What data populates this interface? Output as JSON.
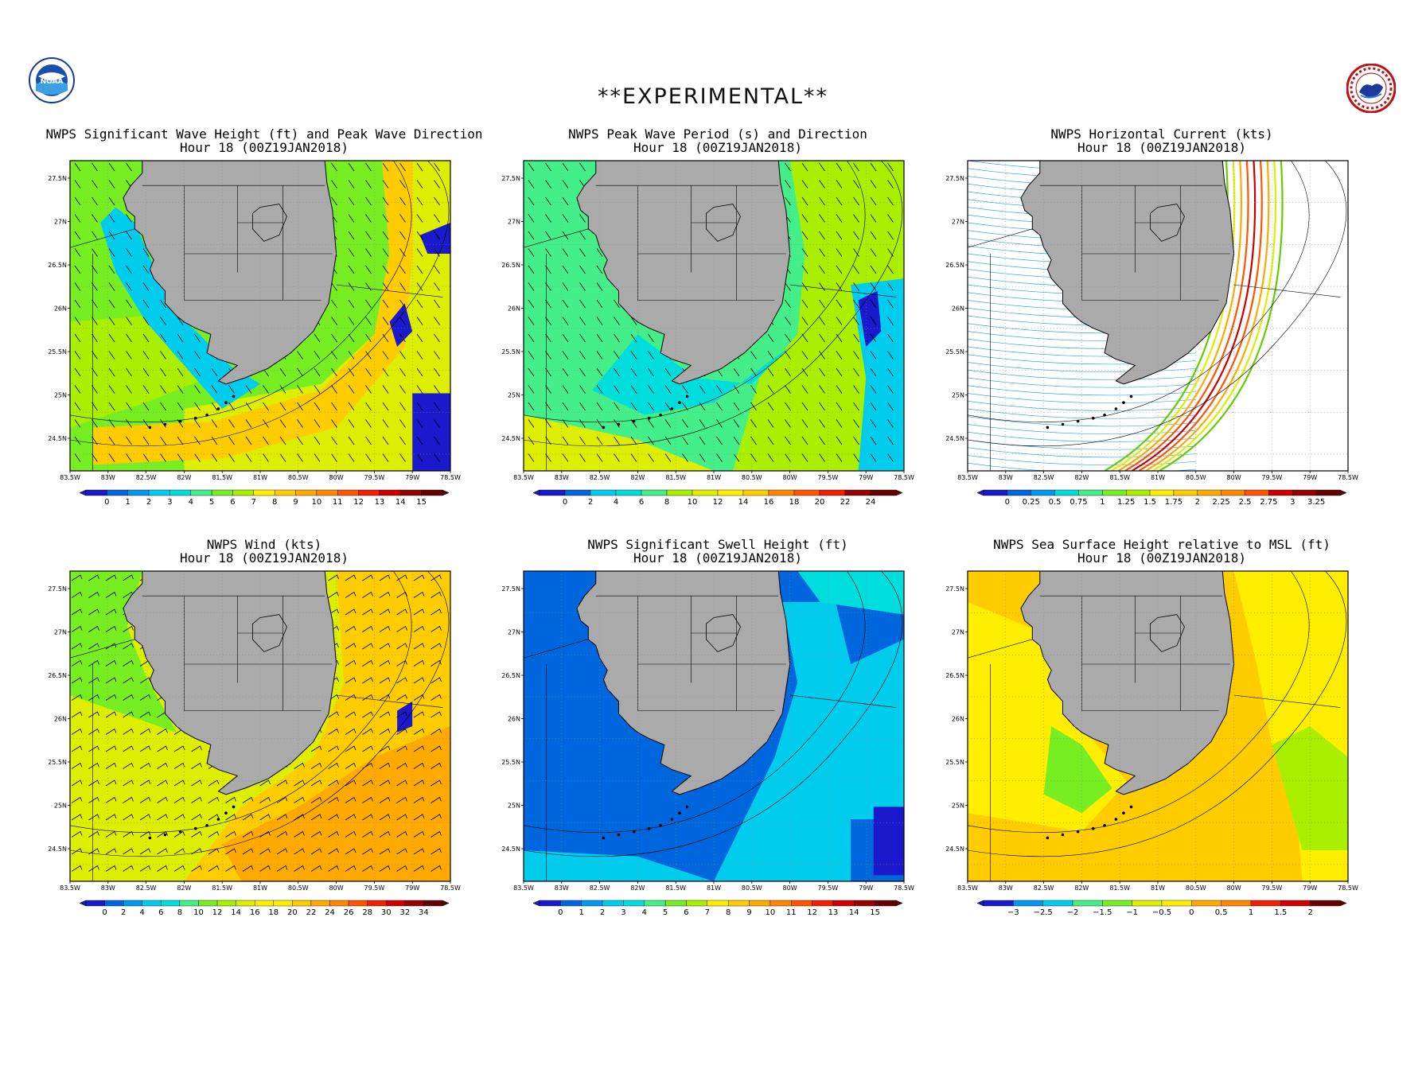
{
  "header": {
    "title": "**EXPERIMENTAL**",
    "left_logo_icon": "noaa-logo-icon",
    "left_logo_text": "NOAA",
    "right_logo_icon": "nws-logo-icon",
    "right_logo_text": "NATIONAL WEATHER SERVICE"
  },
  "axes": {
    "lat_labels": [
      "27.5N",
      "27N",
      "26.5N",
      "26N",
      "25.5N",
      "25N",
      "24.5N"
    ],
    "lon_labels": [
      "83.5W",
      "83W",
      "82.5W",
      "82W",
      "81.5W",
      "81W",
      "80.5W",
      "80W",
      "79.5W",
      "79W",
      "78.5W"
    ]
  },
  "panels": [
    {
      "id": "wave-height",
      "title_line1": "NWPS Significant Wave Height (ft) and Peak Wave Direction",
      "title_line2": "Hour 18 (00Z19JAN2018)",
      "field_style": "wave",
      "overlay": "arrows",
      "colorbar": [
        "0",
        "1",
        "2",
        "3",
        "4",
        "5",
        "6",
        "7",
        "8",
        "9",
        "10",
        "11",
        "12",
        "13",
        "14",
        "15"
      ]
    },
    {
      "id": "wave-period",
      "title_line1": "NWPS Peak Wave Period (s) and Direction",
      "title_line2": "Hour 18 (00Z19JAN2018)",
      "field_style": "period",
      "overlay": "arrows",
      "colorbar": [
        "0",
        "2",
        "4",
        "6",
        "8",
        "10",
        "12",
        "14",
        "16",
        "18",
        "20",
        "22",
        "24"
      ]
    },
    {
      "id": "current",
      "title_line1": "NWPS Horizontal Current (kts)",
      "title_line2": "Hour 18 (00Z19JAN2018)",
      "field_style": "current",
      "overlay": "streamlines",
      "colorbar": [
        "0",
        "0.25",
        "0.5",
        "0.75",
        "1",
        "1.25",
        "1.5",
        "1.75",
        "2",
        "2.25",
        "2.5",
        "2.75",
        "3",
        "3.25"
      ]
    },
    {
      "id": "wind",
      "title_line1": "NWPS Wind (kts)",
      "title_line2": "Hour 18 (00Z19JAN2018)",
      "field_style": "wind",
      "overlay": "barbs",
      "colorbar": [
        "0",
        "2",
        "4",
        "6",
        "8",
        "10",
        "12",
        "14",
        "16",
        "18",
        "20",
        "22",
        "24",
        "26",
        "28",
        "30",
        "32",
        "34"
      ]
    },
    {
      "id": "swell",
      "title_line1": "NWPS Significant Swell Height (ft)",
      "title_line2": "Hour 18 (00Z19JAN2018)",
      "field_style": "swell",
      "overlay": "none",
      "colorbar": [
        "0",
        "1",
        "2",
        "3",
        "4",
        "5",
        "6",
        "7",
        "8",
        "9",
        "10",
        "11",
        "12",
        "13",
        "14",
        "15"
      ]
    },
    {
      "id": "sea-surface",
      "title_line1": "NWPS Sea Surface Height relative to MSL (ft)",
      "title_line2": "Hour 18 (00Z19JAN2018)",
      "field_style": "ssh",
      "overlay": "none",
      "colorbar": [
        "−3",
        "−2.5",
        "−2",
        "−1.5",
        "−1",
        "−0.5",
        "0",
        "0.5",
        "1",
        "1.5",
        "2"
      ]
    }
  ],
  "colors": {
    "land": "#aaaaaa",
    "scale": [
      "#1a1acc",
      "#0066dd",
      "#0099ee",
      "#00ccee",
      "#00dddd",
      "#44ee88",
      "#77ee22",
      "#aaee00",
      "#ddee00",
      "#ffee00",
      "#ffcc00",
      "#ffaa00",
      "#ff8800",
      "#ff5500",
      "#ee2200",
      "#cc0000",
      "#990000",
      "#660000"
    ]
  }
}
